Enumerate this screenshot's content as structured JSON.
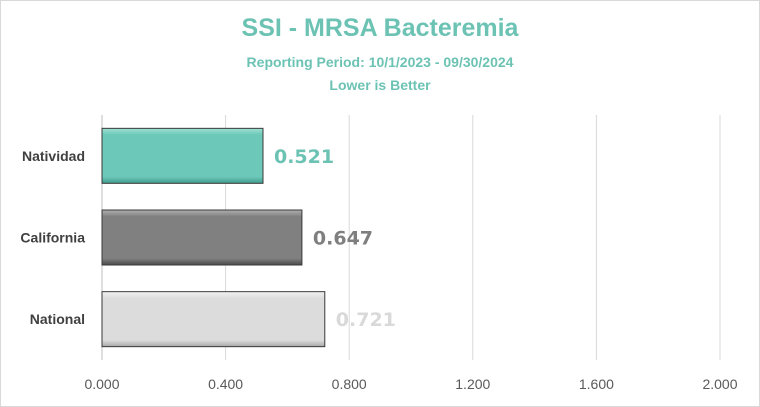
{
  "chart_data": {
    "type": "bar",
    "orientation": "horizontal",
    "title": "SSI - MRSA Bacteremia",
    "subtitle": "Reporting Period: 10/1/2023 - 09/30/2024",
    "subtitle2": "Lower is Better",
    "categories": [
      "Natividad",
      "California",
      "National"
    ],
    "values": [
      0.521,
      0.647,
      0.721
    ],
    "value_labels": [
      "0.521",
      "0.647",
      "0.721"
    ],
    "bar_colors": [
      "#6cc8b8",
      "#808080",
      "#d9d9d9"
    ],
    "label_colors": [
      "#6cc3b4",
      "#7f7f7f",
      "#d9d9d9"
    ],
    "xlim": [
      0,
      2.0
    ],
    "xticks": [
      0,
      0.4,
      0.8,
      1.2,
      1.6,
      2.0
    ],
    "xtick_labels": [
      "0.000",
      "0.400",
      "0.800",
      "1.200",
      "1.600",
      "2.000"
    ],
    "grid": true,
    "legend": "none"
  }
}
